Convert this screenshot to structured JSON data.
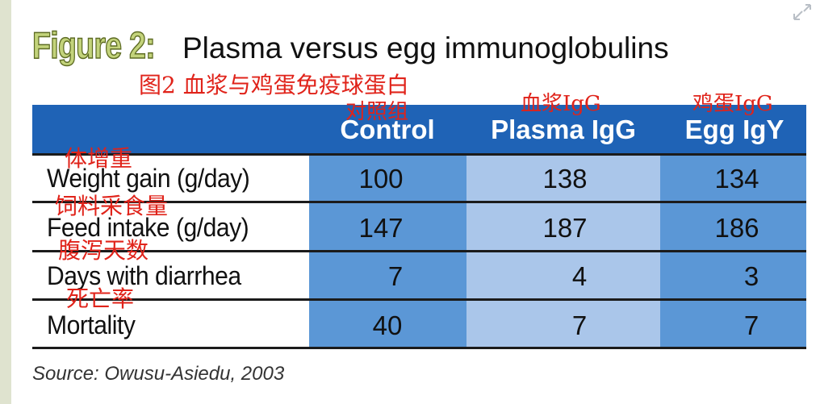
{
  "figure": {
    "label": "Figure 2:",
    "title": "Plasma versus egg immunoglobulins",
    "annotation_title": "图2  血浆与鸡蛋免疫球蛋白",
    "source": "Source: Owusu-Asiedu, 2003"
  },
  "colors": {
    "header_bg": "#1f63b6",
    "control_col": "#5b97d6",
    "plasma_col": "#aac6ea",
    "egg_col": "#5b97d6",
    "annotation": "#e0231a",
    "figure_label": "#c3d37b"
  },
  "chart_data": {
    "type": "table",
    "columns": [
      {
        "label": "Control",
        "annotation": "对照组"
      },
      {
        "label": "Plasma IgG",
        "annotation": "血浆IgG"
      },
      {
        "label": "Egg IgY",
        "annotation": "鸡蛋IgG"
      }
    ],
    "rows": [
      {
        "label": "Weight gain (g/day)",
        "annotation": "体增重",
        "values": [
          "100",
          "138",
          "134"
        ]
      },
      {
        "label": "Feed intake (g/day)",
        "annotation": "饲料采食量",
        "values": [
          "147",
          "187",
          "186"
        ]
      },
      {
        "label": "Days with diarrhea",
        "annotation": "腹泻天数",
        "values": [
          "7",
          "4",
          "3"
        ]
      },
      {
        "label": "Mortality",
        "annotation": "死亡率",
        "values": [
          "40",
          "7",
          "7"
        ]
      }
    ]
  }
}
